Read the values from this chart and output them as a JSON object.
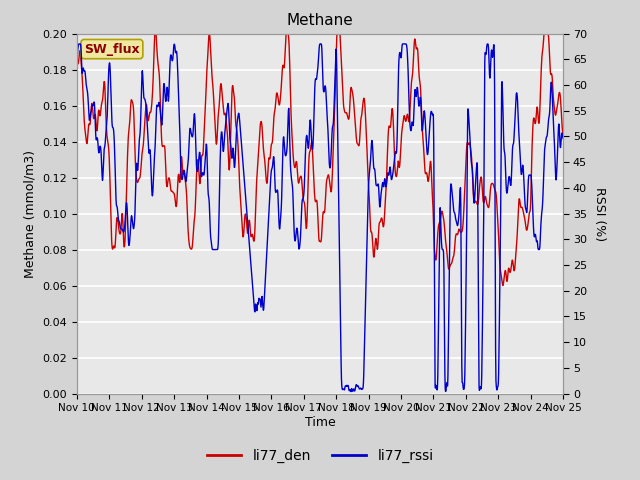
{
  "title": "Methane",
  "xlabel": "Time",
  "ylabel_left": "Methane (mmol/m3)",
  "ylabel_right": "RSSI (%)",
  "ylim_left": [
    0.0,
    0.2
  ],
  "ylim_right": [
    0,
    70
  ],
  "yticks_left": [
    0.0,
    0.02,
    0.04,
    0.06,
    0.08,
    0.1,
    0.12,
    0.14,
    0.16,
    0.18,
    0.2
  ],
  "yticks_right": [
    0,
    5,
    10,
    15,
    20,
    25,
    30,
    35,
    40,
    45,
    50,
    55,
    60,
    65,
    70
  ],
  "xtick_labels": [
    "Nov 10",
    "Nov 11",
    "Nov 12",
    "Nov 13",
    "Nov 14",
    "Nov 15",
    "Nov 16",
    "Nov 17",
    "Nov 18",
    "Nov 19",
    "Nov 20",
    "Nov 21",
    "Nov 22",
    "Nov 23",
    "Nov 24",
    "Nov 25"
  ],
  "color_den": "#cc0000",
  "color_rssi": "#0000cc",
  "legend_label_den": "li77_den",
  "legend_label_rssi": "li77_rssi",
  "legend_box_label": "SW_flux",
  "bg_color": "#d4d4d4",
  "plot_bg_color": "#e8e8e8",
  "grid_color": "#ffffff",
  "linewidth_den": 1.0,
  "linewidth_rssi": 1.0,
  "figsize": [
    6.4,
    4.8
  ],
  "dpi": 100
}
